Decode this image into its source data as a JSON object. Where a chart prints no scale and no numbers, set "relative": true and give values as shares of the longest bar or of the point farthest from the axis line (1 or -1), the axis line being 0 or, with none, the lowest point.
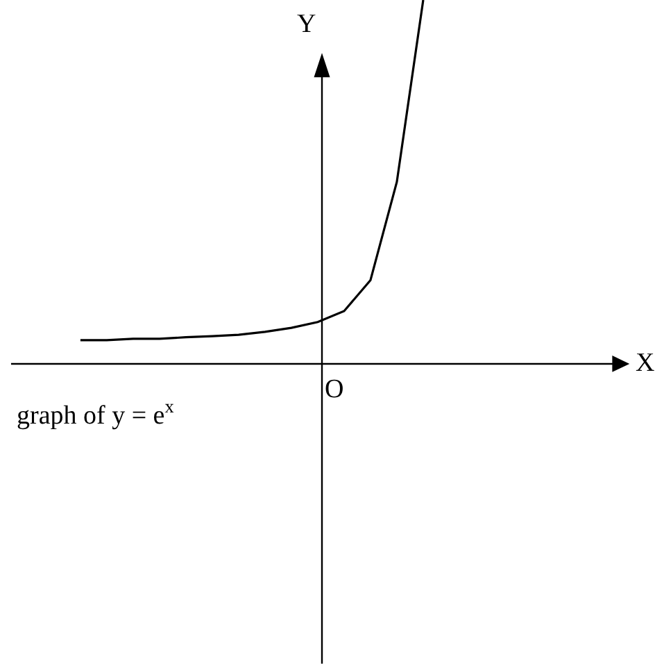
{
  "chart_data": {
    "type": "line",
    "relative": true,
    "categories": [
      null,
      null,
      null,
      null,
      null,
      null,
      null,
      null,
      null,
      null,
      null,
      null,
      null,
      null
    ],
    "series": [
      {
        "color": "#000000",
        "values": [
          0.065,
          0.065,
          0.069,
          0.069,
          0.073,
          0.076,
          0.08,
          0.088,
          0.099,
          0.115,
          0.145,
          0.23,
          0.5,
          1
        ]
      }
    ],
    "annotations": [
      "Y",
      "X",
      "O",
      "graph of y = e$^{x}$"
    ],
    "marker": "none",
    "line_style": "solid",
    "grid": false
  }
}
